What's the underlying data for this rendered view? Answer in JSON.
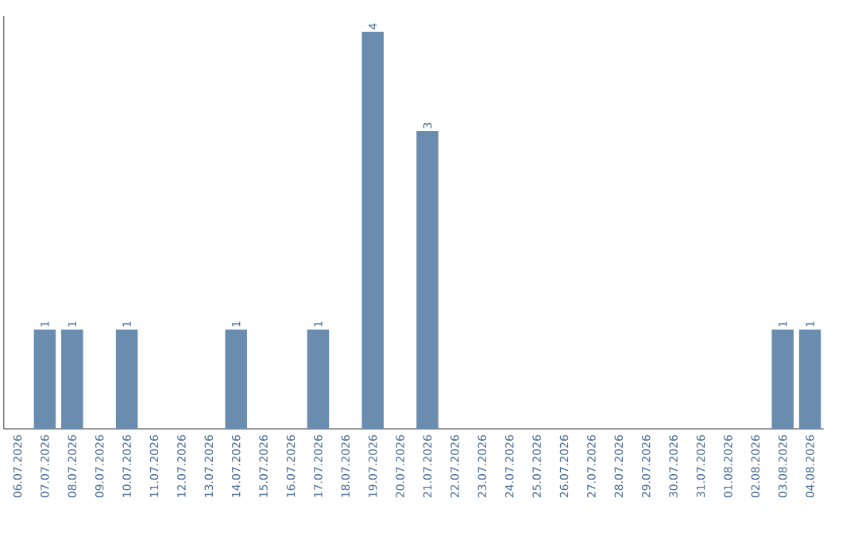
{
  "chart_data": {
    "type": "bar",
    "categories": [
      "06.07.2026",
      "07.07.2026",
      "08.07.2026",
      "09.07.2026",
      "10.07.2026",
      "11.07.2026",
      "12.07.2026",
      "13.07.2026",
      "14.07.2026",
      "15.07.2026",
      "16.07.2026",
      "17.07.2026",
      "18.07.2026",
      "19.07.2026",
      "20.07.2026",
      "21.07.2026",
      "22.07.2026",
      "23.07.2026",
      "24.07.2026",
      "25.07.2026",
      "26.07.2026",
      "27.07.2026",
      "28.07.2026",
      "29.07.2026",
      "30.07.2026",
      "31.07.2026",
      "01.08.2026",
      "02.08.2026",
      "03.08.2026",
      "04.08.2026"
    ],
    "values": [
      0,
      1,
      1,
      0,
      1,
      0,
      0,
      0,
      1,
      0,
      0,
      1,
      0,
      4,
      0,
      3,
      0,
      0,
      0,
      0,
      0,
      0,
      0,
      0,
      0,
      0,
      0,
      0,
      1,
      1
    ],
    "value_labels": [
      null,
      "1",
      "1",
      null,
      "1",
      null,
      null,
      null,
      "1",
      null,
      null,
      "1",
      null,
      "4",
      null,
      "3",
      null,
      null,
      null,
      null,
      null,
      null,
      null,
      null,
      null,
      null,
      null,
      null,
      "1",
      "1"
    ],
    "color": "#6a8caf"
  }
}
